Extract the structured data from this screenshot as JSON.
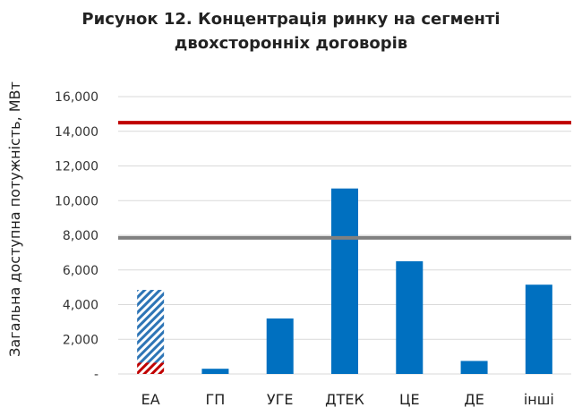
{
  "chart_data": {
    "type": "bar",
    "title": "Рисунок 12. Концентрація ринку на сегменті\nдвохсторонніх договорів",
    "xlabel": "",
    "ylabel": "Загальна доступна потужність, МВт",
    "ylim": [
      0,
      16000
    ],
    "yticks": [
      0,
      2000,
      4000,
      6000,
      8000,
      10000,
      12000,
      14000,
      16000
    ],
    "ytick_labels": [
      "-",
      "2,000",
      "4,000",
      "6,000",
      "8,000",
      "10,000",
      "12,000",
      "14,000",
      "16,000"
    ],
    "categories": [
      "ЕА",
      "ГП",
      "УГЕ",
      "ДТЕК",
      "ЦЕ",
      "ДЕ",
      "інші"
    ],
    "values": [
      4850,
      300,
      3200,
      10700,
      6500,
      750,
      5150
    ],
    "ea_red_hatched_part": 650,
    "reference_lines": [
      {
        "value": 14500,
        "color": "#c00000"
      },
      {
        "value": 7850,
        "color": "#808080"
      }
    ],
    "colors": {
      "bar": "#0070c0",
      "hatch_blue": "#2e75b6",
      "hatch_red": "#c00000",
      "grid": "#d9d9d9"
    },
    "grid": true,
    "legend": "none"
  }
}
